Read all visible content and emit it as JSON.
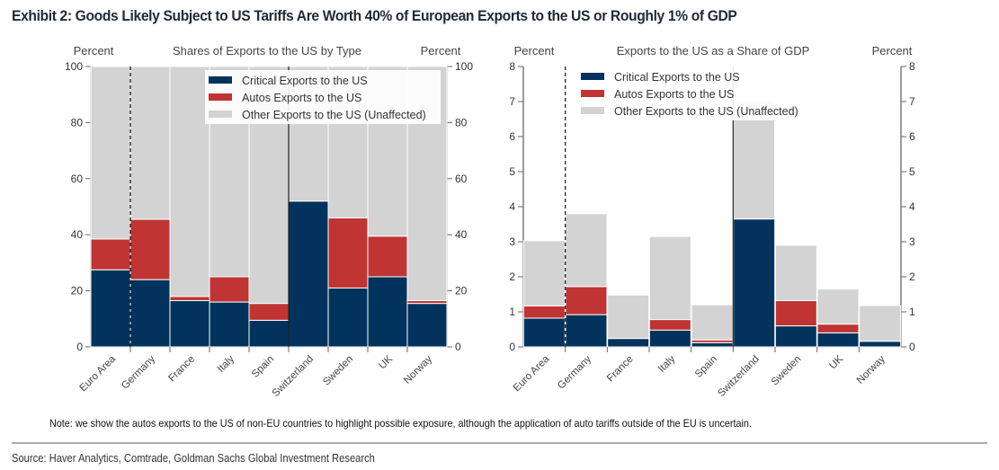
{
  "title": "Exhibit 2: Goods Likely Subject to US Tariffs Are Worth 40% of European Exports to the US or Roughly 1% of GDP",
  "note": "Note: we show the autos exports to the US of non-EU countries to highlight possible exposure, although the application of auto tariffs outside of the EU is uncertain.",
  "source": "Source: Haver Analytics, Comtrade, Goldman Sachs Global Investment Research",
  "colors": {
    "critical": "#02335c",
    "autos": "#c03434",
    "other": "#d3d3d3"
  },
  "chart_data": [
    {
      "type": "bar",
      "stacked": true,
      "title": "Shares of Exports to the US by Type",
      "ylabel_left": "Percent",
      "ylabel_right": "Percent",
      "ylim": [
        0,
        100
      ],
      "yticks": [
        0,
        20,
        40,
        60,
        80,
        100
      ],
      "categories": [
        "Euro Area",
        "Germany",
        "France",
        "Italy",
        "Spain",
        "Switzerland",
        "Sweden",
        "UK",
        "Norway"
      ],
      "series": [
        {
          "name": "Critical Exports to the US",
          "key": "critical",
          "values": [
            27.5,
            24,
            16.5,
            16,
            9.5,
            52,
            21,
            25,
            15.5
          ]
        },
        {
          "name": "Autos Exports to the US",
          "key": "autos",
          "values": [
            11,
            21.5,
            1.5,
            9,
            6,
            0,
            25,
            14.5,
            1
          ]
        },
        {
          "name": "Other Exports to the US (Unaffected)",
          "key": "other",
          "values": [
            61.5,
            54.5,
            82,
            75,
            84.5,
            48,
            54,
            60.5,
            83.5
          ]
        }
      ],
      "legend": "top-right",
      "separators": [
        {
          "after": "Euro Area",
          "style": "dashed"
        },
        {
          "after": "Spain",
          "style": "solid"
        }
      ]
    },
    {
      "type": "bar",
      "stacked": true,
      "title": "Exports to the US as a Share of GDP",
      "ylabel_left": "Percent",
      "ylabel_right": "Percent",
      "ylim": [
        0,
        8
      ],
      "yticks": [
        0,
        1,
        2,
        3,
        4,
        5,
        6,
        7,
        8
      ],
      "categories": [
        "Euro Area",
        "Germany",
        "France",
        "Italy",
        "Spain",
        "Switzerland",
        "Sweden",
        "UK",
        "Norway"
      ],
      "series": [
        {
          "name": "Critical Exports to the US",
          "key": "critical",
          "values": [
            0.82,
            0.92,
            0.24,
            0.48,
            0.12,
            3.65,
            0.6,
            0.4,
            0.16
          ]
        },
        {
          "name": "Autos Exports to the US",
          "key": "autos",
          "values": [
            0.35,
            0.8,
            0.0,
            0.3,
            0.08,
            0.0,
            0.72,
            0.25,
            0.0
          ]
        },
        {
          "name": "Other Exports to the US (Unaffected)",
          "key": "other",
          "values": [
            1.86,
            2.08,
            1.24,
            2.37,
            1.0,
            3.35,
            1.58,
            1.0,
            1.02
          ]
        }
      ],
      "legend": "top-left",
      "separators": [
        {
          "after": "Euro Area",
          "style": "dashed"
        },
        {
          "after": "Spain",
          "style": "solid"
        }
      ]
    }
  ]
}
